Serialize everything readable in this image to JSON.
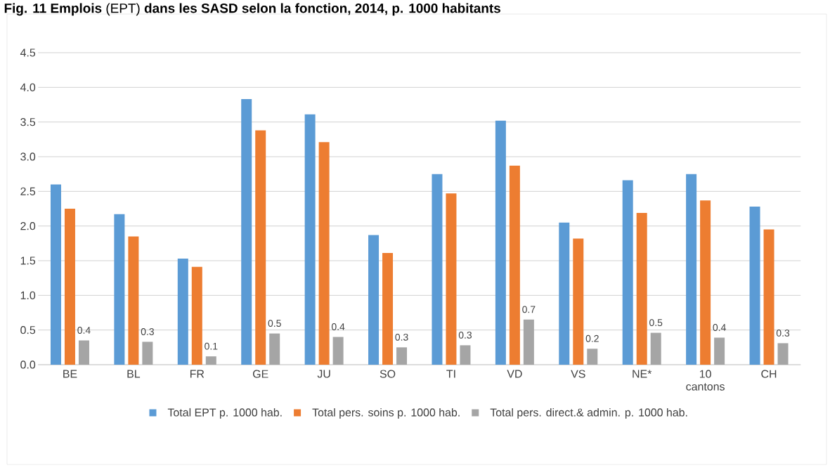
{
  "chart_data": {
    "type": "bar",
    "title": "**Fig. 11 Emplois** (EPT) **dans les SASD selon la fonction, 2014, p. 1000 habitants**",
    "categories": [
      "BE",
      "BL",
      "FR",
      "GE",
      "JU",
      "SO",
      "TI",
      "VD",
      "VS",
      "NE*",
      "10 cantons",
      "CH"
    ],
    "series": [
      {
        "name": "Total EPT p. 1000 hab.",
        "color": "#5b9bd5",
        "values": [
          2.6,
          2.17,
          1.53,
          3.83,
          3.61,
          1.87,
          2.75,
          3.52,
          2.05,
          2.66,
          2.75,
          2.28
        ]
      },
      {
        "name": "Total pers. soins p. 1000 hab.",
        "color": "#ed7d31",
        "values": [
          2.25,
          1.85,
          1.41,
          3.38,
          3.21,
          1.61,
          2.47,
          2.87,
          1.82,
          2.19,
          2.37,
          1.95
        ]
      },
      {
        "name": "Total pers. direct.& admin.  p. 1000 hab.",
        "color": "#a5a5a5",
        "values": [
          0.35,
          0.33,
          0.12,
          0.45,
          0.4,
          0.25,
          0.28,
          0.65,
          0.23,
          0.46,
          0.39,
          0.31
        ],
        "value_labels": [
          "0.4",
          "0.3",
          "0.1",
          "0.5",
          "0.4",
          "0.3",
          "0.3",
          "0.7",
          "0.2",
          "0.5",
          "0.4",
          "0.3"
        ]
      }
    ],
    "ylim": [
      0,
      4.5
    ],
    "yticks": [
      {
        "value": 0,
        "label": "0.0"
      },
      {
        "value": 0.5,
        "label": "0.5"
      },
      {
        "value": 1,
        "label": "1.0"
      },
      {
        "value": 1.5,
        "label": "1.5"
      },
      {
        "value": 2,
        "label": "2.0"
      },
      {
        "value": 2.5,
        "label": "2.5"
      },
      {
        "value": 3,
        "label": "3.0"
      },
      {
        "value": 3.5,
        "label": "3.5"
      },
      {
        "value": 4,
        "label": "4.0"
      },
      {
        "value": 4.5,
        "label": "4.5"
      }
    ],
    "grid": "y",
    "legend": "bottom"
  }
}
